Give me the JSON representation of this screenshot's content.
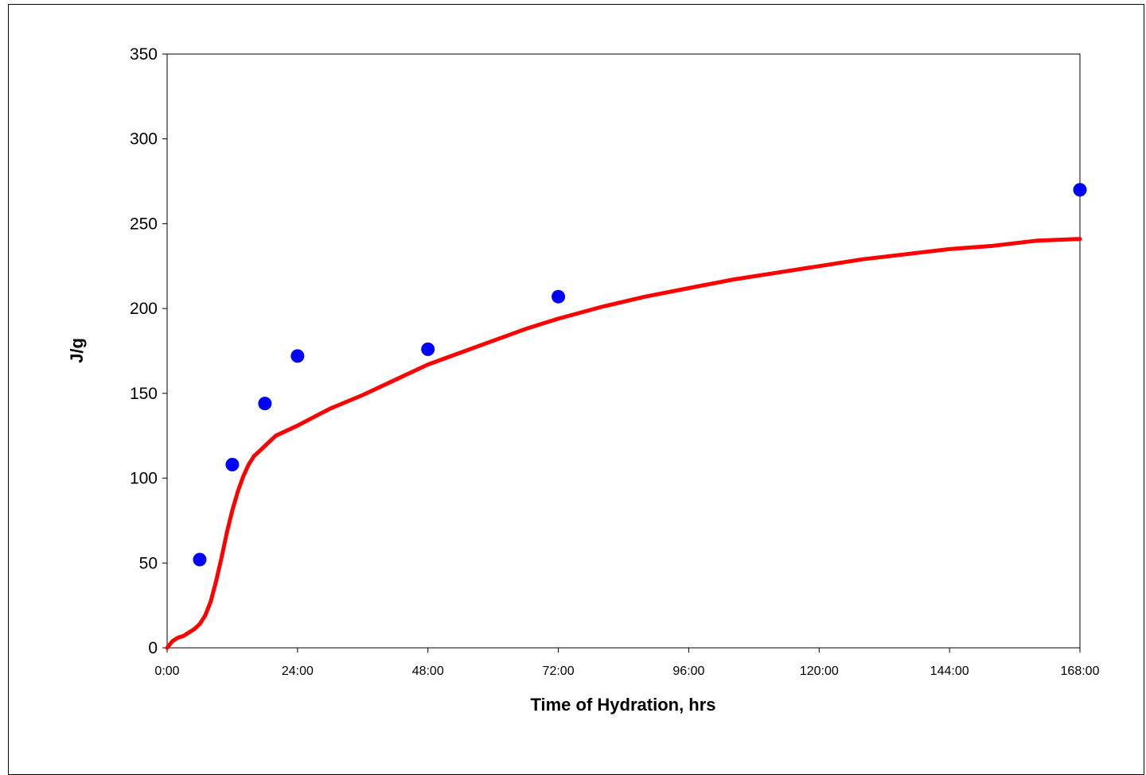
{
  "chart_data": {
    "type": "scatter",
    "title": "",
    "xlabel": "Time of Hydration, hrs",
    "ylabel": "J/g",
    "xlim": [
      0,
      168
    ],
    "ylim": [
      0,
      350
    ],
    "x_ticks": [
      0,
      24,
      48,
      72,
      96,
      120,
      144,
      168
    ],
    "x_tick_labels": [
      "0:00",
      "24:00",
      "48:00",
      "72:00",
      "96:00",
      "120:00",
      "144:00",
      "168:00"
    ],
    "y_ticks": [
      0,
      50,
      100,
      150,
      200,
      250,
      300,
      350
    ],
    "y_tick_labels": [
      "0",
      "50",
      "100",
      "150",
      "200",
      "250",
      "300",
      "350"
    ],
    "grid": false,
    "legend": "none",
    "series": [
      {
        "kind": "line",
        "color": "#ff0000",
        "x": [
          0,
          1,
          2,
          3,
          4,
          5,
          6,
          7,
          8,
          9,
          10,
          11,
          12,
          13,
          14,
          15,
          16,
          17,
          18,
          19,
          20,
          22,
          24,
          27,
          30,
          33,
          36,
          40,
          44,
          48,
          54,
          60,
          66,
          72,
          80,
          88,
          96,
          104,
          112,
          120,
          128,
          136,
          144,
          152,
          160,
          168
        ],
        "y": [
          0,
          4,
          6,
          7,
          9,
          11,
          14,
          19,
          27,
          39,
          53,
          68,
          81,
          92,
          101,
          108,
          113,
          116,
          119,
          122,
          125,
          128,
          131,
          136,
          141,
          145,
          149,
          155,
          161,
          167,
          174,
          181,
          188,
          194,
          201,
          207,
          212,
          217,
          221,
          225,
          229,
          232,
          235,
          237,
          240,
          241
        ]
      },
      {
        "kind": "scatter",
        "color": "#0000ff",
        "x": [
          6,
          12,
          18,
          24,
          48,
          72,
          168
        ],
        "y": [
          52,
          108,
          144,
          172,
          176,
          207,
          270
        ]
      }
    ]
  }
}
